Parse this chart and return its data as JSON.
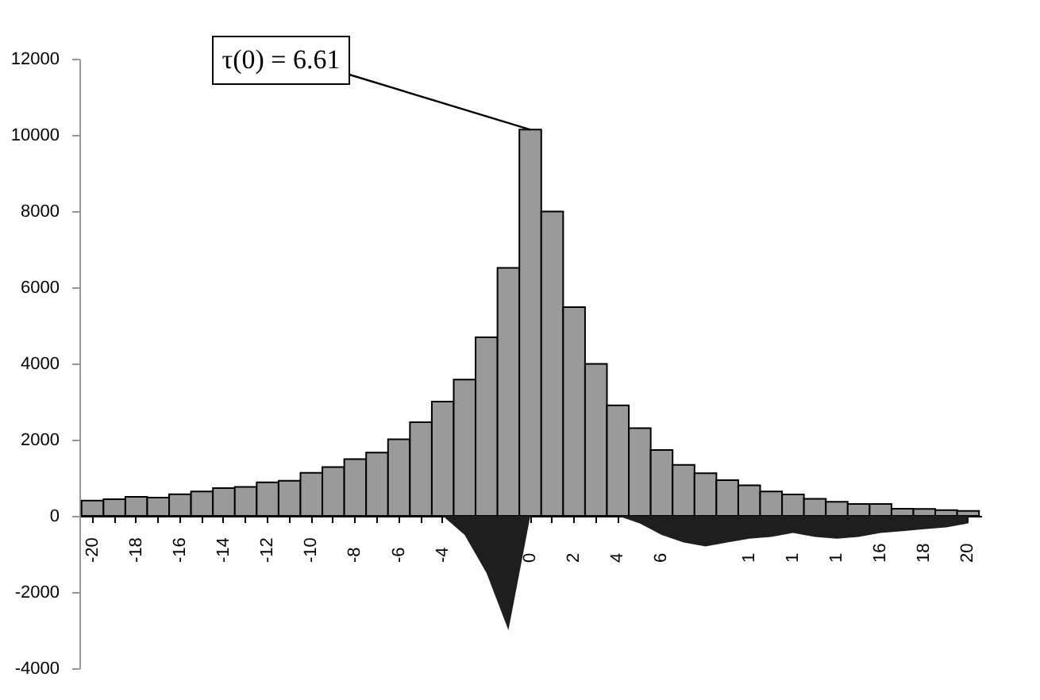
{
  "chart_data": {
    "type": "bar",
    "categories": [
      "-20",
      null,
      "-18",
      null,
      "-16",
      null,
      "-14",
      null,
      "-12",
      null,
      "-10",
      null,
      "-8",
      null,
      "-6",
      null,
      "-4",
      null,
      null,
      null,
      "0",
      null,
      "2",
      null,
      "4",
      null,
      "6",
      null,
      null,
      null,
      "1",
      null,
      "1",
      null,
      "1",
      null,
      "16",
      null,
      "18",
      null,
      "20"
    ],
    "series": [
      {
        "color": "#9a9a9a",
        "values": [
          400,
          440,
          500,
          480,
          570,
          640,
          730,
          760,
          880,
          920,
          1130,
          1280,
          1490,
          1660,
          2010,
          2460,
          3000,
          3580,
          4690,
          6510,
          10140,
          7990,
          5480,
          3990,
          2900,
          2300,
          1730,
          1340,
          1120,
          940,
          800,
          640,
          560,
          450,
          370,
          310,
          310,
          190,
          180,
          150,
          130
        ]
      },
      {
        "type": "area",
        "color": "#1e1e1e",
        "values": [
          0,
          0,
          0,
          0,
          0,
          0,
          0,
          0,
          0,
          0,
          0,
          0,
          0,
          0,
          0,
          0,
          0,
          -500,
          -1500,
          -3000,
          0,
          0,
          0,
          0,
          0,
          -200,
          -500,
          -700,
          -800,
          -700,
          -600,
          -550,
          -450,
          -550,
          -600,
          -550,
          -450,
          -400,
          -350,
          -300,
          -200
        ]
      }
    ],
    "ylim": [
      -4000,
      12000
    ],
    "yticks": [
      -4000,
      -2000,
      0,
      2000,
      4000,
      6000,
      8000,
      10000,
      12000
    ],
    "annotations": [
      {
        "text": "τ(0) = 6.61",
        "x": "0",
        "y": 10140
      }
    ]
  }
}
